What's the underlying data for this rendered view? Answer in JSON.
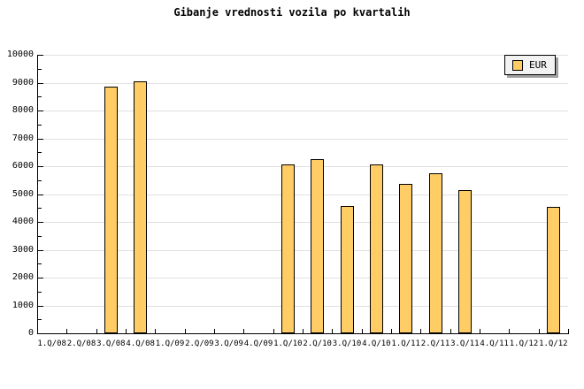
{
  "chart_data": {
    "type": "bar",
    "title": "Gibanje vrednosti vozila po kvartalih",
    "legend": [
      "EUR"
    ],
    "legend_position": "top-right",
    "categories": [
      "1.Q/08",
      "2.Q/08",
      "3.Q/08",
      "4.Q/08",
      "1.Q/09",
      "2.Q/09",
      "3.Q/09",
      "4.Q/09",
      "1.Q/10",
      "2.Q/10",
      "3.Q/10",
      "4.Q/10",
      "1.Q/11",
      "2.Q/11",
      "3.Q/11",
      "4.Q/11",
      "1.Q/12",
      "1.Q/12"
    ],
    "series": [
      {
        "name": "EUR",
        "values": [
          null,
          null,
          8860,
          9050,
          null,
          null,
          null,
          null,
          6060,
          6250,
          4570,
          6060,
          5370,
          5750,
          5140,
          null,
          null,
          4540
        ]
      }
    ],
    "xlabel": "",
    "ylabel": "",
    "ylim": [
      0,
      10000
    ],
    "ytick_step": 1000,
    "ytick_minor_step": 500,
    "ytick_labels": [
      "0",
      "1000",
      "2000",
      "3000",
      "4000",
      "5000",
      "6000",
      "7000",
      "8000",
      "9000",
      "10000"
    ],
    "grid": "horizontal-major",
    "colors": {
      "background": "#FFFFFF",
      "bar_fill": "#FFCC66",
      "bar_border": "#000000",
      "grid": "#E0E0E0",
      "axis": "#000000",
      "text": "#000000",
      "legend_bg": "#F2F2F2",
      "legend_shadow": "#A0A0A0"
    }
  }
}
